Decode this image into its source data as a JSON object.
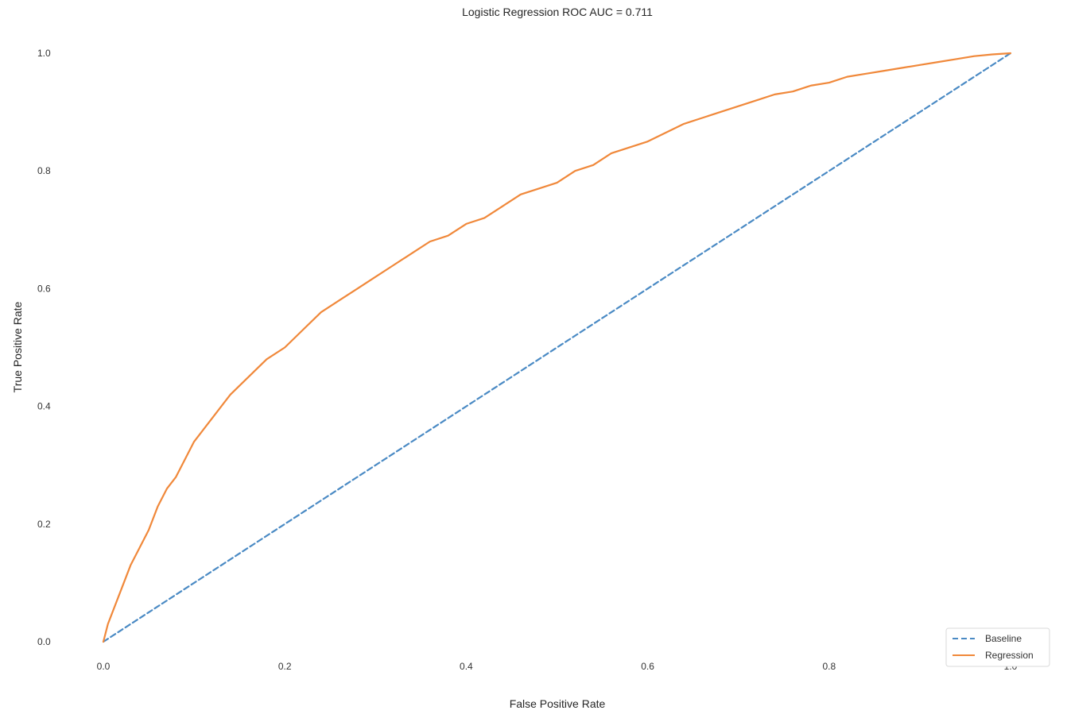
{
  "chart_data": {
    "type": "line",
    "title": "Logistic Regression ROC AUC = 0.711",
    "xlabel": "False Positive Rate",
    "ylabel": "True Positive Rate",
    "xlim": [
      0.0,
      1.0
    ],
    "ylim": [
      0.0,
      1.0
    ],
    "xticks": [
      "0.0",
      "0.2",
      "0.4",
      "0.6",
      "0.8",
      "1.0"
    ],
    "yticks": [
      "0.0",
      "0.2",
      "0.4",
      "0.6",
      "0.8",
      "1.0"
    ],
    "grid": false,
    "legend_position": "bottom-right",
    "series": [
      {
        "name": "Baseline",
        "style": "dashed",
        "color": "#4a8ac4",
        "x": [
          0.0,
          1.0
        ],
        "y": [
          0.0,
          1.0
        ]
      },
      {
        "name": "Regression",
        "style": "solid",
        "color": "#f0883a",
        "x": [
          0.0,
          0.005,
          0.01,
          0.02,
          0.03,
          0.04,
          0.05,
          0.06,
          0.07,
          0.08,
          0.09,
          0.1,
          0.12,
          0.14,
          0.16,
          0.18,
          0.2,
          0.22,
          0.24,
          0.26,
          0.28,
          0.3,
          0.32,
          0.34,
          0.36,
          0.38,
          0.4,
          0.42,
          0.44,
          0.46,
          0.48,
          0.5,
          0.52,
          0.54,
          0.56,
          0.58,
          0.6,
          0.62,
          0.64,
          0.66,
          0.68,
          0.7,
          0.72,
          0.74,
          0.76,
          0.78,
          0.8,
          0.82,
          0.84,
          0.86,
          0.88,
          0.9,
          0.92,
          0.94,
          0.96,
          0.98,
          1.0
        ],
        "y": [
          0.0,
          0.03,
          0.05,
          0.09,
          0.13,
          0.16,
          0.19,
          0.23,
          0.26,
          0.28,
          0.31,
          0.34,
          0.38,
          0.42,
          0.45,
          0.48,
          0.5,
          0.53,
          0.56,
          0.58,
          0.6,
          0.62,
          0.64,
          0.66,
          0.68,
          0.69,
          0.71,
          0.72,
          0.74,
          0.76,
          0.77,
          0.78,
          0.8,
          0.81,
          0.83,
          0.84,
          0.85,
          0.865,
          0.88,
          0.89,
          0.9,
          0.91,
          0.92,
          0.93,
          0.935,
          0.945,
          0.95,
          0.96,
          0.965,
          0.97,
          0.975,
          0.98,
          0.985,
          0.99,
          0.995,
          0.998,
          1.0
        ]
      }
    ]
  }
}
